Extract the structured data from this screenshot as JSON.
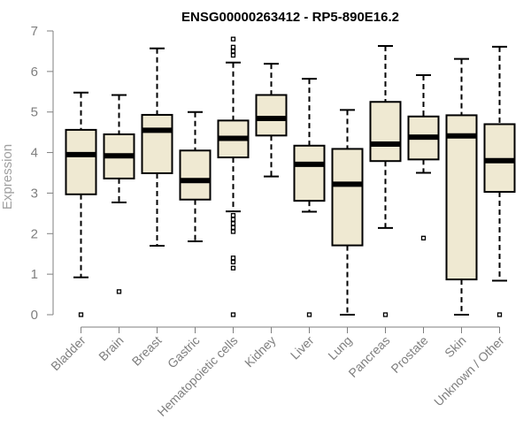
{
  "chart_data": {
    "type": "boxplot",
    "title": "ENSG00000263412 - RP5-890E16.2",
    "xlabel": "",
    "ylabel": "Expression",
    "ylim": [
      0,
      7
    ],
    "yticks": [
      0,
      1,
      2,
      3,
      4,
      5,
      6,
      7
    ],
    "grid": false,
    "colors": {
      "box_fill": "#efe9d2",
      "box_stroke": "#000000",
      "axis": "#7f7f7f"
    },
    "categories": [
      "Bladder",
      "Brain",
      "Breast",
      "Gastric",
      "Hematopoietic cells",
      "Kidney",
      "Liver",
      "Lung",
      "Pancreas",
      "Prostate",
      "Skin",
      "Unknown / Other"
    ],
    "boxes": [
      {
        "name": "Bladder",
        "whisker_low": 0.92,
        "q1": 2.97,
        "median": 3.95,
        "q3": 4.56,
        "whisker_high": 5.48,
        "outliers": [
          0.0
        ]
      },
      {
        "name": "Brain",
        "whisker_low": 2.77,
        "q1": 3.36,
        "median": 3.92,
        "q3": 4.45,
        "whisker_high": 5.42,
        "outliers": [
          0.57
        ]
      },
      {
        "name": "Breast",
        "whisker_low": 1.7,
        "q1": 3.49,
        "median": 4.55,
        "q3": 4.93,
        "whisker_high": 6.57,
        "outliers": []
      },
      {
        "name": "Gastric",
        "whisker_low": 1.81,
        "q1": 2.84,
        "median": 3.31,
        "q3": 4.05,
        "whisker_high": 5.0,
        "outliers": []
      },
      {
        "name": "Hematopoietic cells",
        "whisker_low": 2.55,
        "q1": 3.88,
        "median": 4.35,
        "q3": 4.79,
        "whisker_high": 6.22,
        "outliers": [
          0.0,
          1.15,
          1.3,
          1.4,
          2.05,
          2.15,
          2.25,
          2.35,
          2.45,
          6.4,
          6.5,
          6.6,
          6.8
        ]
      },
      {
        "name": "Kidney",
        "whisker_low": 3.41,
        "q1": 4.42,
        "median": 4.84,
        "q3": 5.42,
        "whisker_high": 6.19,
        "outliers": []
      },
      {
        "name": "Liver",
        "whisker_low": 2.54,
        "q1": 2.81,
        "median": 3.71,
        "q3": 4.17,
        "whisker_high": 5.82,
        "outliers": [
          0.0
        ]
      },
      {
        "name": "Lung",
        "whisker_low": 0.0,
        "q1": 1.71,
        "median": 3.22,
        "q3": 4.09,
        "whisker_high": 5.05,
        "outliers": []
      },
      {
        "name": "Pancreas",
        "whisker_low": 2.14,
        "q1": 3.79,
        "median": 4.21,
        "q3": 5.25,
        "whisker_high": 6.63,
        "outliers": [
          0.0
        ]
      },
      {
        "name": "Prostate",
        "whisker_low": 3.5,
        "q1": 3.83,
        "median": 4.38,
        "q3": 4.89,
        "whisker_high": 5.91,
        "outliers": [
          1.89
        ]
      },
      {
        "name": "Skin",
        "whisker_low": 0.0,
        "q1": 0.87,
        "median": 4.41,
        "q3": 4.92,
        "whisker_high": 6.31,
        "outliers": []
      },
      {
        "name": "Unknown / Other",
        "whisker_low": 0.84,
        "q1": 3.03,
        "median": 3.8,
        "q3": 4.7,
        "whisker_high": 6.61,
        "outliers": [
          0.0
        ]
      }
    ]
  }
}
